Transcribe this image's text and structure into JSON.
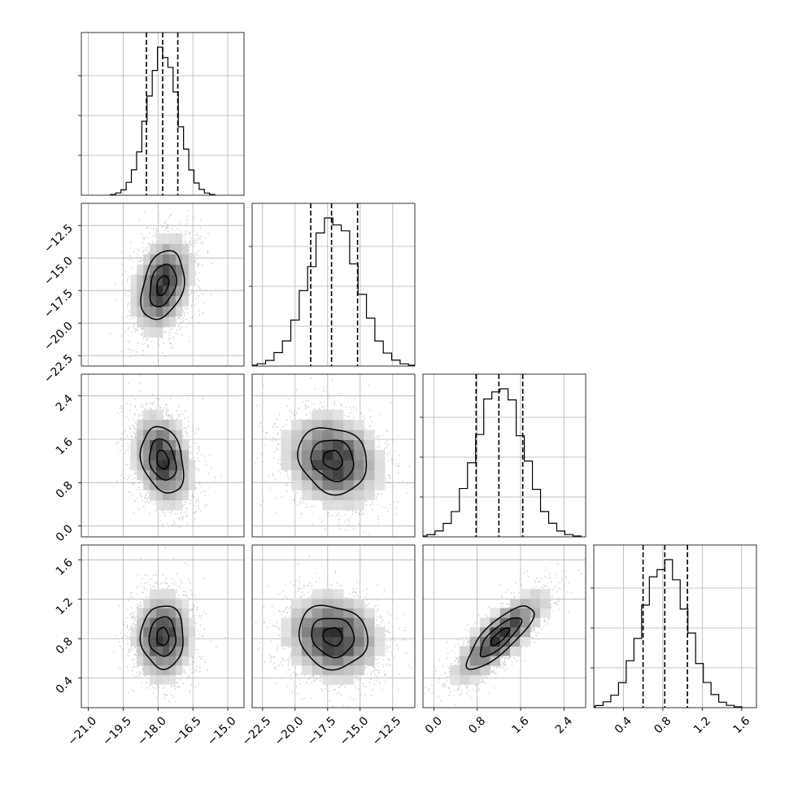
{
  "chart_data": {
    "type": "corner",
    "parameters": [
      {
        "name": "",
        "range": [
          -21.3,
          -14.3
        ],
        "ticks": [
          -21.0,
          -19.5,
          -18.0,
          -16.5,
          -15.0
        ],
        "tick_labels": [
          "−21.0",
          "−19.5",
          "−18.0",
          "−16.5",
          "−15.0"
        ],
        "quantiles": [
          -18.5,
          -17.8,
          -17.15
        ],
        "mean": -17.8,
        "sd": 0.66
      },
      {
        "name": "",
        "range": [
          -23.3,
          -10.8
        ],
        "ticks": [
          -22.5,
          -20.0,
          -17.5,
          -15.0,
          -12.5
        ],
        "tick_labels": [
          "−22.5",
          "−20.0",
          "−17.5",
          "−15.0",
          "−12.5"
        ],
        "quantiles": [
          -18.8,
          -17.2,
          -15.2
        ],
        "mean": -17.1,
        "sd": 1.9
      },
      {
        "name": "",
        "range": [
          -0.2,
          2.8
        ],
        "ticks": [
          0.0,
          0.8,
          1.6,
          2.4
        ],
        "tick_labels": [
          "0.0",
          "0.8",
          "1.6",
          "2.4"
        ],
        "quantiles": [
          0.78,
          1.2,
          1.64
        ],
        "mean": 1.22,
        "sd": 0.44
      },
      {
        "name": "",
        "range": [
          0.1,
          1.75
        ],
        "ticks": [
          0.4,
          0.8,
          1.2,
          1.6
        ],
        "tick_labels": [
          "0.4",
          "0.8",
          "1.2",
          "1.6"
        ],
        "quantiles": [
          0.6,
          0.82,
          1.05
        ],
        "mean": 0.82,
        "sd": 0.23
      }
    ],
    "correlations": [
      [
        1,
        0.3,
        -0.25,
        0
      ],
      [
        0.3,
        1,
        -0.15,
        -0.1
      ],
      [
        -0.25,
        -0.15,
        1,
        0.8
      ],
      [
        0,
        -0.1,
        0.8,
        1
      ]
    ],
    "histogram_bins": 20,
    "quantile_line_style": "dashed",
    "contour_levels": [
      0.39,
      0.86,
      1.39
    ],
    "grid": true,
    "colors": {
      "ink": "#000000",
      "grid": "#b0b0b0",
      "points": "#b3b3b3"
    }
  }
}
